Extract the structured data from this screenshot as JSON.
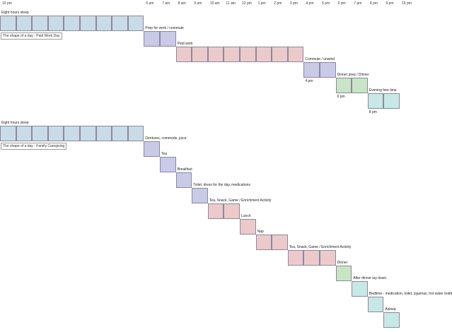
{
  "hours": [
    "10 pm",
    "6 am",
    "7 am",
    "8 am",
    "9 am",
    "10 am",
    "11 am",
    "12 pm",
    "1 pm",
    "2 pm",
    "3 pm",
    "4 pm",
    "5 pm",
    "6 pm",
    "7 pm",
    "8 pm",
    "9 pm",
    "15 pm"
  ],
  "colors": {
    "sleep": "#c9dbe7",
    "transition": "#c9c9e8",
    "work": "#eccacb",
    "meal": "#c8e5c5",
    "free": "#c8e7e7"
  },
  "work_day": {
    "title": "The shape of a day - Paid Work Day",
    "blocks": [
      {
        "label": "Eight hours sleep",
        "category": "sleep",
        "start_hour": 0,
        "cells": 9
      },
      {
        "label": "Prep for work / commute",
        "category": "transition",
        "start_hour": 9,
        "cells": 2
      },
      {
        "label": "Paid work",
        "category": "work",
        "start_hour": 11,
        "cells": 8
      },
      {
        "label": "Commute / unwind",
        "category": "transition",
        "start_hour": 19,
        "cells": 2,
        "end_label": "4 pm"
      },
      {
        "label": "Dinner prep / Dinner",
        "category": "meal",
        "start_hour": 21,
        "cells": 2,
        "end_label": "6 pm"
      },
      {
        "label": "Evening free time",
        "category": "free",
        "start_hour": 23,
        "cells": 2,
        "end_label": "8 pm"
      }
    ]
  },
  "caregiving_day": {
    "title": "The shape of a day - Family Caregiving",
    "blocks": [
      {
        "label": "Eight hours sleep",
        "category": "sleep",
        "start_hour": 0,
        "cells": 9
      },
      {
        "label": "Dentures, commode, juice",
        "category": "transition",
        "start_hour": 9,
        "cells": 1
      },
      {
        "label": "Tea",
        "category": "transition",
        "start_hour": 10,
        "cells": 1
      },
      {
        "label": "Breakfast",
        "category": "transition",
        "start_hour": 11,
        "cells": 1
      },
      {
        "label": "Toilet, dress for the day, medications",
        "category": "transition",
        "start_hour": 12,
        "cells": 1
      },
      {
        "label": "Tea, Snack, Game / Enrichment Activity",
        "category": "work",
        "start_hour": 13,
        "cells": 2
      },
      {
        "label": "Lunch",
        "category": "work",
        "start_hour": 15,
        "cells": 1
      },
      {
        "label": "Nap",
        "category": "work",
        "start_hour": 16,
        "cells": 2
      },
      {
        "label": "Tea, Snack, Game / Enrichment Activity",
        "category": "work",
        "start_hour": 18,
        "cells": 3
      },
      {
        "label": "Dinner",
        "category": "meal",
        "start_hour": 21,
        "cells": 1
      },
      {
        "label": "After dinner lay down",
        "category": "free",
        "start_hour": 22,
        "cells": 1
      },
      {
        "label": "Bedtime - medication, toilet, pyjamas, hot water bottle",
        "category": "free",
        "start_hour": 23,
        "cells": 1
      },
      {
        "label": "Asleep",
        "category": "free",
        "start_hour": 24,
        "cells": 1
      }
    ]
  }
}
